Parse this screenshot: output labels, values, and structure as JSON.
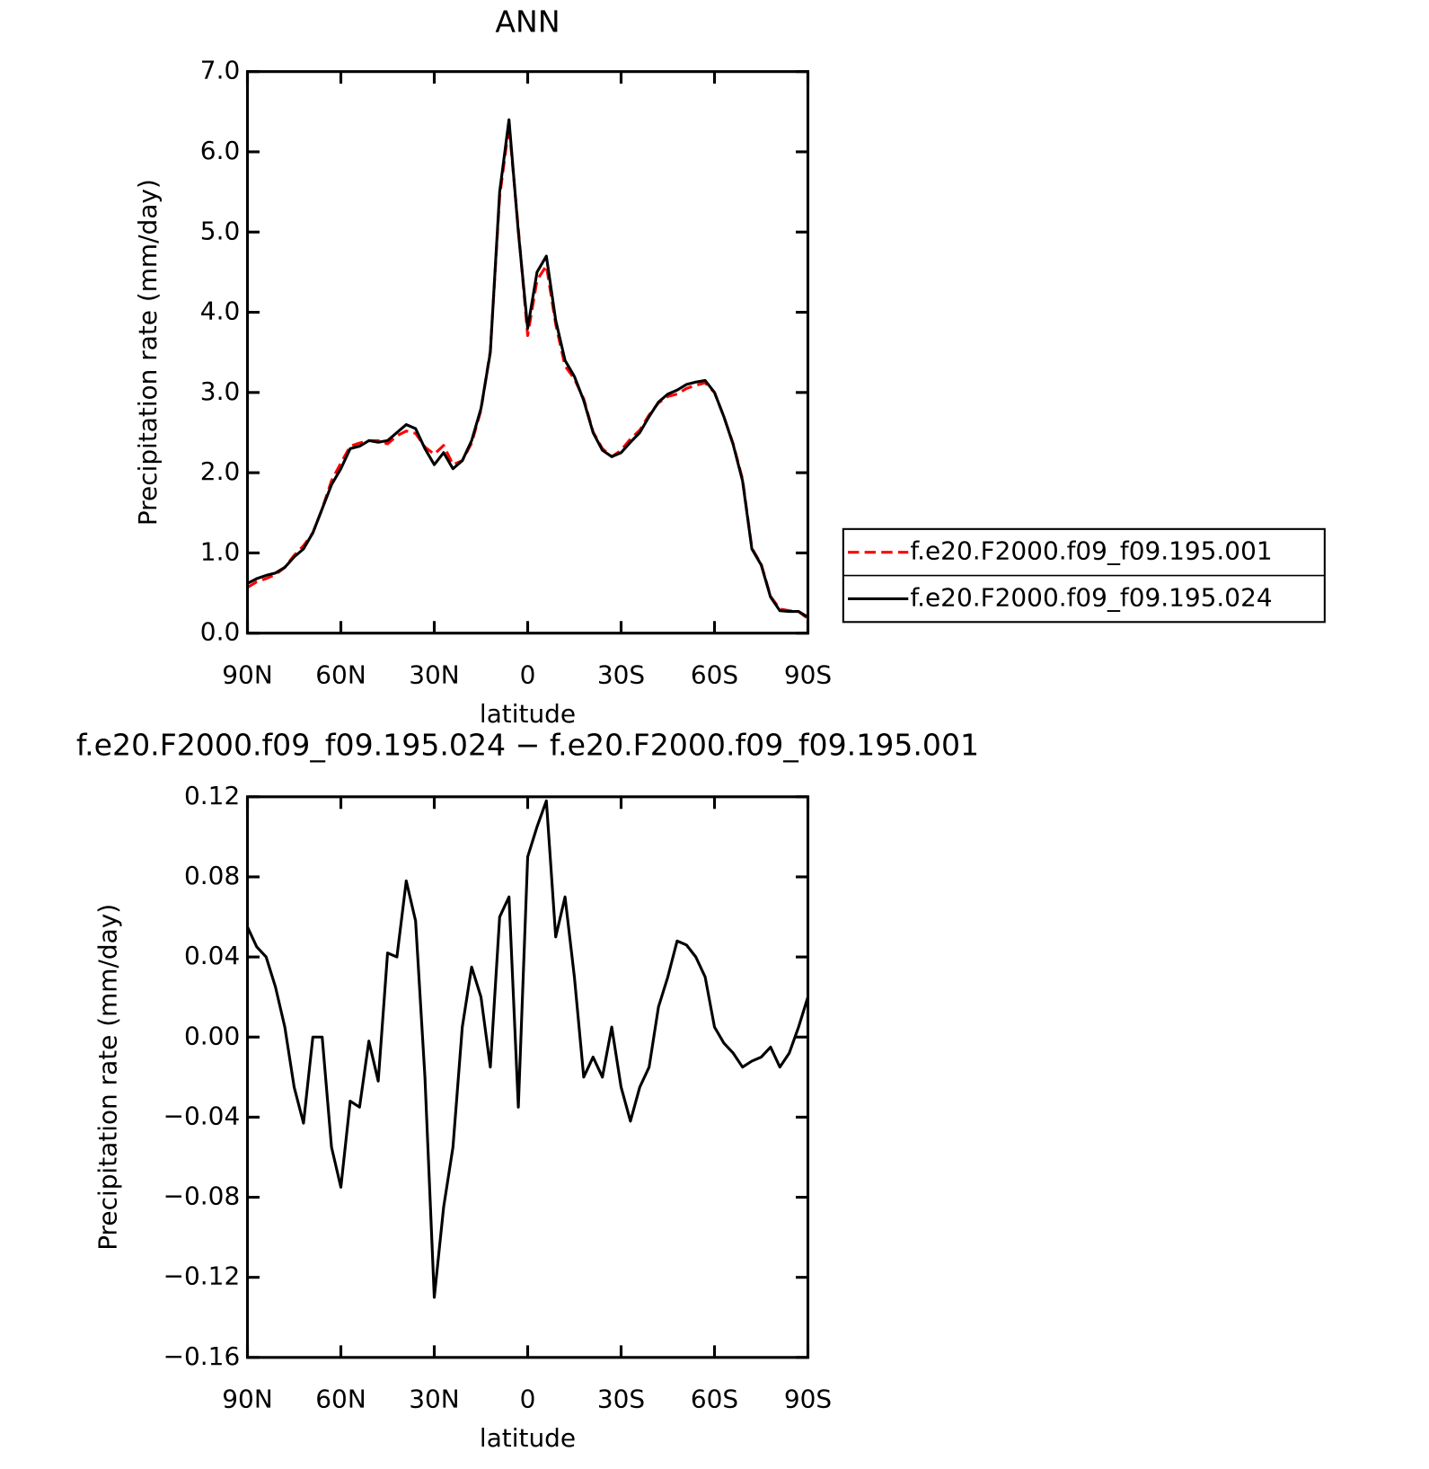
{
  "chart_data": [
    {
      "type": "line",
      "title": "ANN",
      "xlabel": "latitude",
      "ylabel": "Precipitation rate (mm/day)",
      "x": [
        90,
        87,
        84,
        81,
        78,
        75,
        72,
        69,
        66,
        63,
        60,
        57,
        54,
        51,
        48,
        45,
        42,
        39,
        36,
        33,
        30,
        27,
        24,
        21,
        18,
        15,
        12,
        9,
        6,
        3,
        0,
        -3,
        -6,
        -9,
        -12,
        -15,
        -18,
        -21,
        -24,
        -27,
        -30,
        -33,
        -36,
        -39,
        -42,
        -45,
        -48,
        -51,
        -54,
        -57,
        -60,
        -63,
        -66,
        -69,
        -72,
        -75,
        -78,
        -81,
        -84,
        -87,
        -90
      ],
      "series": [
        {
          "name": "f.e20.F2000.f09_f09.195.001",
          "color": "#ff0000",
          "dash": true,
          "values": [
            0.57,
            0.64,
            0.68,
            0.73,
            0.82,
            0.97,
            1.09,
            1.25,
            1.55,
            1.9,
            2.12,
            2.33,
            2.37,
            2.4,
            2.4,
            2.36,
            2.46,
            2.52,
            2.49,
            2.32,
            2.23,
            2.34,
            2.1,
            2.15,
            2.37,
            2.78,
            3.52,
            5.44,
            6.33,
            5.04,
            3.71,
            4.4,
            4.58,
            3.85,
            3.33,
            3.17,
            2.92,
            2.51,
            2.3,
            2.2,
            2.28,
            2.42,
            2.53,
            2.72,
            2.87,
            2.95,
            2.98,
            3.05,
            3.09,
            3.12,
            3.0,
            2.7,
            2.36,
            1.92,
            1.06,
            0.86,
            0.46,
            0.3,
            0.28,
            0.27,
            0.18
          ]
        },
        {
          "name": "f.e20.F2000.f09_f09.195.024",
          "color": "#000000",
          "dash": false,
          "values": [
            0.62,
            0.68,
            0.72,
            0.75,
            0.82,
            0.95,
            1.05,
            1.25,
            1.55,
            1.85,
            2.05,
            2.3,
            2.33,
            2.4,
            2.38,
            2.4,
            2.5,
            2.6,
            2.55,
            2.3,
            2.1,
            2.25,
            2.05,
            2.15,
            2.4,
            2.8,
            3.5,
            5.5,
            6.4,
            5.0,
            3.8,
            4.5,
            4.7,
            3.9,
            3.4,
            3.2,
            2.9,
            2.5,
            2.28,
            2.2,
            2.25,
            2.38,
            2.5,
            2.7,
            2.88,
            2.98,
            3.03,
            3.1,
            3.13,
            3.15,
            3.0,
            2.7,
            2.35,
            1.9,
            1.05,
            0.85,
            0.45,
            0.28,
            0.27,
            0.27,
            0.2
          ]
        }
      ],
      "xlim": [
        90,
        -90
      ],
      "xticks": [
        {
          "value": 90,
          "label": "90N"
        },
        {
          "value": 60,
          "label": "60N"
        },
        {
          "value": 30,
          "label": "30N"
        },
        0,
        {
          "value": -30,
          "label": "30S"
        },
        {
          "value": -60,
          "label": "60S"
        },
        {
          "value": -90,
          "label": "90S"
        }
      ],
      "ylim": [
        0,
        7
      ],
      "yticks": [
        {
          "value": 0,
          "label": "0.0"
        },
        {
          "value": 1,
          "label": "1.0"
        },
        {
          "value": 2,
          "label": "2.0"
        },
        {
          "value": 3,
          "label": "3.0"
        },
        {
          "value": 4,
          "label": "4.0"
        },
        {
          "value": 5,
          "label": "5.0"
        },
        {
          "value": 6,
          "label": "6.0"
        },
        {
          "value": 7,
          "label": "7.0"
        }
      ],
      "legend": "right"
    },
    {
      "type": "line",
      "title": "f.e20.F2000.f09_f09.195.024 − f.e20.F2000.f09_f09.195.001",
      "xlabel": "latitude",
      "ylabel": "Precipitation rate (mm/day)",
      "x": [
        90,
        87,
        84,
        81,
        78,
        75,
        72,
        69,
        66,
        63,
        60,
        57,
        54,
        51,
        48,
        45,
        42,
        39,
        36,
        33,
        30,
        27,
        24,
        21,
        18,
        15,
        12,
        9,
        6,
        3,
        0,
        -3,
        -6,
        -9,
        -12,
        -15,
        -18,
        -21,
        -24,
        -27,
        -30,
        -33,
        -36,
        -39,
        -42,
        -45,
        -48,
        -51,
        -54,
        -57,
        -60,
        -63,
        -66,
        -69,
        -72,
        -75,
        -78,
        -81,
        -84,
        -87,
        -90
      ],
      "series": [
        {
          "color": "#000000",
          "dash": false,
          "values": [
            0.055,
            0.045,
            0.04,
            0.025,
            0.005,
            -0.025,
            -0.043,
            0.0,
            0.0,
            -0.055,
            -0.075,
            -0.032,
            -0.035,
            -0.002,
            -0.022,
            0.042,
            0.04,
            0.078,
            0.058,
            -0.02,
            -0.13,
            -0.085,
            -0.055,
            0.005,
            0.035,
            0.02,
            -0.015,
            0.06,
            0.07,
            -0.035,
            0.09,
            0.105,
            0.118,
            0.05,
            0.07,
            0.03,
            -0.02,
            -0.01,
            -0.02,
            0.005,
            -0.025,
            -0.042,
            -0.025,
            -0.015,
            0.015,
            0.03,
            0.048,
            0.046,
            0.04,
            0.03,
            0.005,
            -0.003,
            -0.008,
            -0.015,
            -0.012,
            -0.01,
            -0.005,
            -0.015,
            -0.008,
            0.005,
            0.02
          ]
        }
      ],
      "xlim": [
        90,
        -90
      ],
      "xticks": [
        {
          "value": 90,
          "label": "90N"
        },
        {
          "value": 60,
          "label": "60N"
        },
        {
          "value": 30,
          "label": "30N"
        },
        0,
        {
          "value": -30,
          "label": "30S"
        },
        {
          "value": -60,
          "label": "60S"
        },
        {
          "value": -90,
          "label": "90S"
        }
      ],
      "ylim": [
        -0.16,
        0.12
      ],
      "yticks": [
        {
          "value": -0.16,
          "label": "−0.16"
        },
        {
          "value": -0.12,
          "label": "−0.12"
        },
        {
          "value": -0.08,
          "label": "−0.08"
        },
        {
          "value": -0.04,
          "label": "−0.04"
        },
        {
          "value": 0,
          "label": "0.00"
        },
        {
          "value": 0.04,
          "label": "0.04"
        },
        {
          "value": 0.08,
          "label": "0.08"
        },
        {
          "value": 0.12,
          "label": "0.12"
        }
      ]
    }
  ]
}
